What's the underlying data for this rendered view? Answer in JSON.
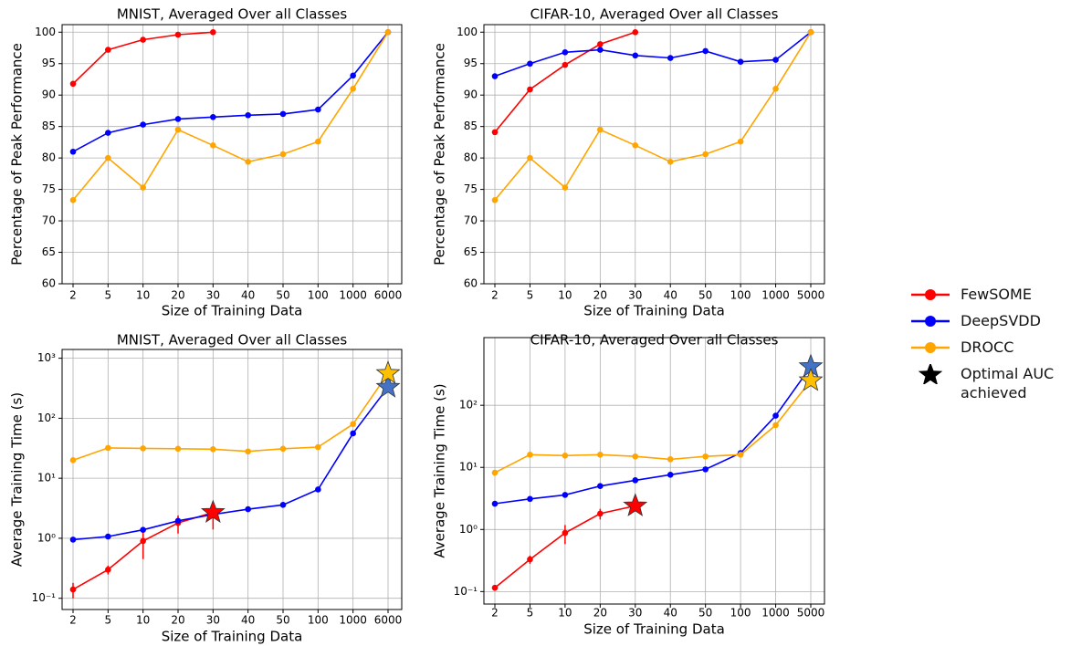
{
  "chart_data": [
    {
      "type": "line",
      "title": "MNIST, Averaged Over all Classes",
      "xlabel": "Size of Training Data",
      "ylabel": "Percentage of Peak Performance",
      "categories": [
        "2",
        "5",
        "10",
        "20",
        "30",
        "40",
        "50",
        "100",
        "1000",
        "6000"
      ],
      "ylim": [
        60,
        101.2
      ],
      "yticks": [
        60,
        65,
        70,
        75,
        80,
        85,
        90,
        95,
        100
      ],
      "grid": true,
      "series": [
        {
          "name": "FewSOME",
          "color": "#ff0000",
          "values": [
            91.8,
            97.2,
            98.8,
            99.6,
            100,
            null,
            null,
            null,
            null,
            null
          ]
        },
        {
          "name": "DeepSVDD",
          "color": "#0000ff",
          "values": [
            81,
            84,
            85.3,
            86.2,
            86.5,
            86.8,
            87,
            87.7,
            93.1,
            100
          ]
        },
        {
          "name": "DROCC",
          "color": "#ffa500",
          "values": [
            73.3,
            80,
            75.3,
            84.5,
            82,
            79.4,
            80.6,
            82.6,
            91,
            100
          ]
        }
      ]
    },
    {
      "type": "line",
      "title": "CIFAR-10, Averaged Over all Classes",
      "xlabel": "Size of Training Data",
      "ylabel": "Percentage of Peak Performance",
      "categories": [
        "2",
        "5",
        "10",
        "20",
        "30",
        "40",
        "50",
        "100",
        "1000",
        "5000"
      ],
      "ylim": [
        60,
        101.2
      ],
      "yticks": [
        60,
        65,
        70,
        75,
        80,
        85,
        90,
        95,
        100
      ],
      "grid": true,
      "series": [
        {
          "name": "FewSOME",
          "color": "#ff0000",
          "values": [
            84.1,
            90.9,
            94.8,
            98.1,
            100,
            null,
            null,
            null,
            null,
            null
          ]
        },
        {
          "name": "DeepSVDD",
          "color": "#0000ff",
          "values": [
            93,
            95,
            96.8,
            97.2,
            96.3,
            95.9,
            97,
            95.3,
            95.6,
            100
          ]
        },
        {
          "name": "DROCC",
          "color": "#ffa500",
          "values": [
            73.3,
            80,
            75.3,
            84.5,
            82,
            79.4,
            80.6,
            82.6,
            91,
            100
          ]
        }
      ]
    },
    {
      "type": "line",
      "title": "MNIST, Averaged Over all Classes",
      "xlabel": "Size of Training Data",
      "ylabel": "Average Training Time (s)",
      "categories": [
        "2",
        "5",
        "10",
        "20",
        "30",
        "40",
        "50",
        "100",
        "1000",
        "6000"
      ],
      "log_y": true,
      "ylim": [
        0.065,
        1400
      ],
      "grid": true,
      "yticks": [
        {
          "value": 0.1,
          "label": "10⁻¹"
        },
        {
          "value": 1,
          "label": "10⁰"
        },
        {
          "value": 10,
          "label": "10¹"
        },
        {
          "value": 100,
          "label": "10²"
        },
        {
          "value": 1000,
          "label": "10³"
        }
      ],
      "series": [
        {
          "name": "FewSOME",
          "color": "#ff0000",
          "values": [
            0.14,
            0.3,
            0.9,
            1.8,
            2.7,
            null,
            null,
            null,
            null,
            null
          ],
          "errors": [
            0.04,
            0.05,
            0.45,
            0.6,
            1.3
          ],
          "star_index": 4,
          "star_color": "#ff0000"
        },
        {
          "name": "DeepSVDD",
          "color": "#0000ff",
          "values": [
            0.95,
            1.07,
            1.38,
            1.95,
            2.5,
            3.05,
            3.6,
            6.5,
            56,
            330
          ],
          "star_index": 9,
          "star_color": "#4472c4"
        },
        {
          "name": "DROCC",
          "color": "#ffa500",
          "values": [
            20,
            32,
            31.5,
            31,
            30.5,
            28,
            31,
            33,
            80,
            560
          ],
          "star_index": 9,
          "star_color": "#ffc000"
        }
      ]
    },
    {
      "type": "line",
      "title": "CIFAR-10, Averaged Over all Classes",
      "xlabel": "Size of Training Data",
      "ylabel": "Average Training Time (s)",
      "categories": [
        "2",
        "5",
        "10",
        "20",
        "30",
        "40",
        "50",
        "100",
        "1000",
        "5000"
      ],
      "log_y": true,
      "ylim": [
        0.063,
        1230
      ],
      "grid": true,
      "yticks": [
        {
          "value": 0.1,
          "label": "10⁻¹"
        },
        {
          "value": 1,
          "label": "10⁰"
        },
        {
          "value": 10,
          "label": "10¹"
        },
        {
          "value": 100,
          "label": "10²"
        }
      ],
      "series": [
        {
          "name": "FewSOME",
          "color": "#ff0000",
          "values": [
            0.115,
            0.33,
            0.88,
            1.8,
            2.4,
            null,
            null,
            null,
            null,
            null
          ],
          "errors": [
            0.01,
            0.05,
            0.3,
            0.35,
            0.3
          ],
          "star_index": 4,
          "star_color": "#ff0000"
        },
        {
          "name": "DeepSVDD",
          "color": "#0000ff",
          "values": [
            2.6,
            3.1,
            3.6,
            5,
            6.2,
            7.6,
            9.3,
            17,
            68,
            420
          ],
          "star_index": 9,
          "star_color": "#4472c4"
        },
        {
          "name": "DROCC",
          "color": "#ffa500",
          "values": [
            8.2,
            16,
            15.5,
            16,
            15,
            13.5,
            15,
            16,
            48,
            250
          ],
          "star_index": 9,
          "star_color": "#ffc000"
        }
      ]
    }
  ],
  "legend": {
    "star_label": "Optimal AUC achieved",
    "star_color": "#000000"
  }
}
